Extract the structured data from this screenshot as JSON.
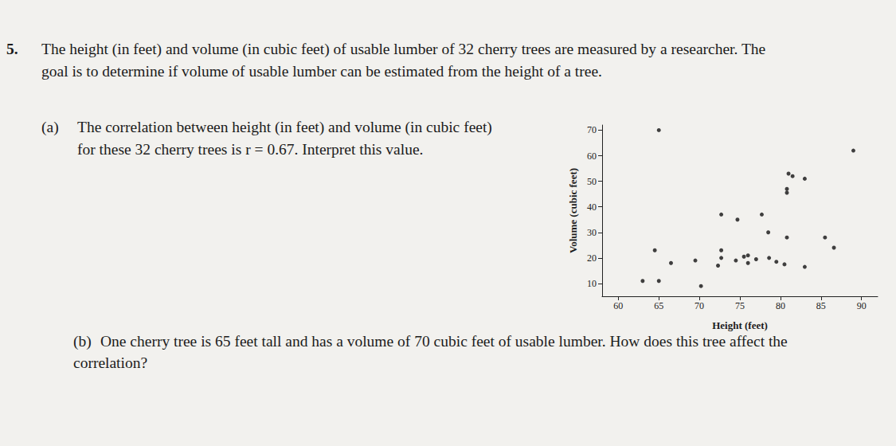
{
  "question": {
    "number": "5.",
    "lines": [
      "The height (in feet) and volume (in cubic feet) of usable lumber of 32 cherry trees are measured by a researcher. The",
      "goal is to determine if volume of usable lumber can be estimated from the height of a tree."
    ]
  },
  "part_a": {
    "label": "(a)",
    "lines": [
      "The correlation between height (in feet) and volume (in cubic feet)",
      "for these 32 cherry trees is r = 0.67. Interpret this value."
    ]
  },
  "part_b": {
    "label": "(b)",
    "lines": [
      "One cherry tree is 65 feet tall and has a volume of 70 cubic feet of usable lumber. How does this tree affect the",
      "correlation?"
    ]
  },
  "chart_data": {
    "type": "scatter",
    "x_label": "Height (feet)",
    "y_label": "Volume (cubic feet)",
    "x": [
      65,
      89,
      81,
      81.5,
      83,
      80.8,
      80.8,
      72.7,
      74.7,
      77.7,
      78.5,
      80.8,
      85.5,
      86.6,
      64.5,
      72.7,
      72.7,
      66.5,
      69.5,
      74.5,
      75.5,
      76,
      76,
      77,
      78.6,
      79.5,
      80.5,
      83,
      72.3,
      63,
      65,
      70.2
    ],
    "values": [
      70,
      62,
      53,
      52,
      51,
      47,
      45.5,
      37,
      35,
      37,
      30,
      28,
      28,
      24,
      23,
      23,
      20,
      18,
      19,
      19,
      20.5,
      18,
      21,
      19.5,
      20,
      18.5,
      17.5,
      16.5,
      17,
      11,
      11,
      9
    ],
    "color": "#111111",
    "marker": "circle",
    "xlim": [
      58,
      92
    ],
    "xticks": [
      60,
      65,
      70,
      75,
      80,
      85,
      90
    ],
    "ylim": [
      5,
      72
    ],
    "yticks": [
      10,
      20,
      30,
      40,
      50,
      60,
      70
    ],
    "grid": false
  }
}
